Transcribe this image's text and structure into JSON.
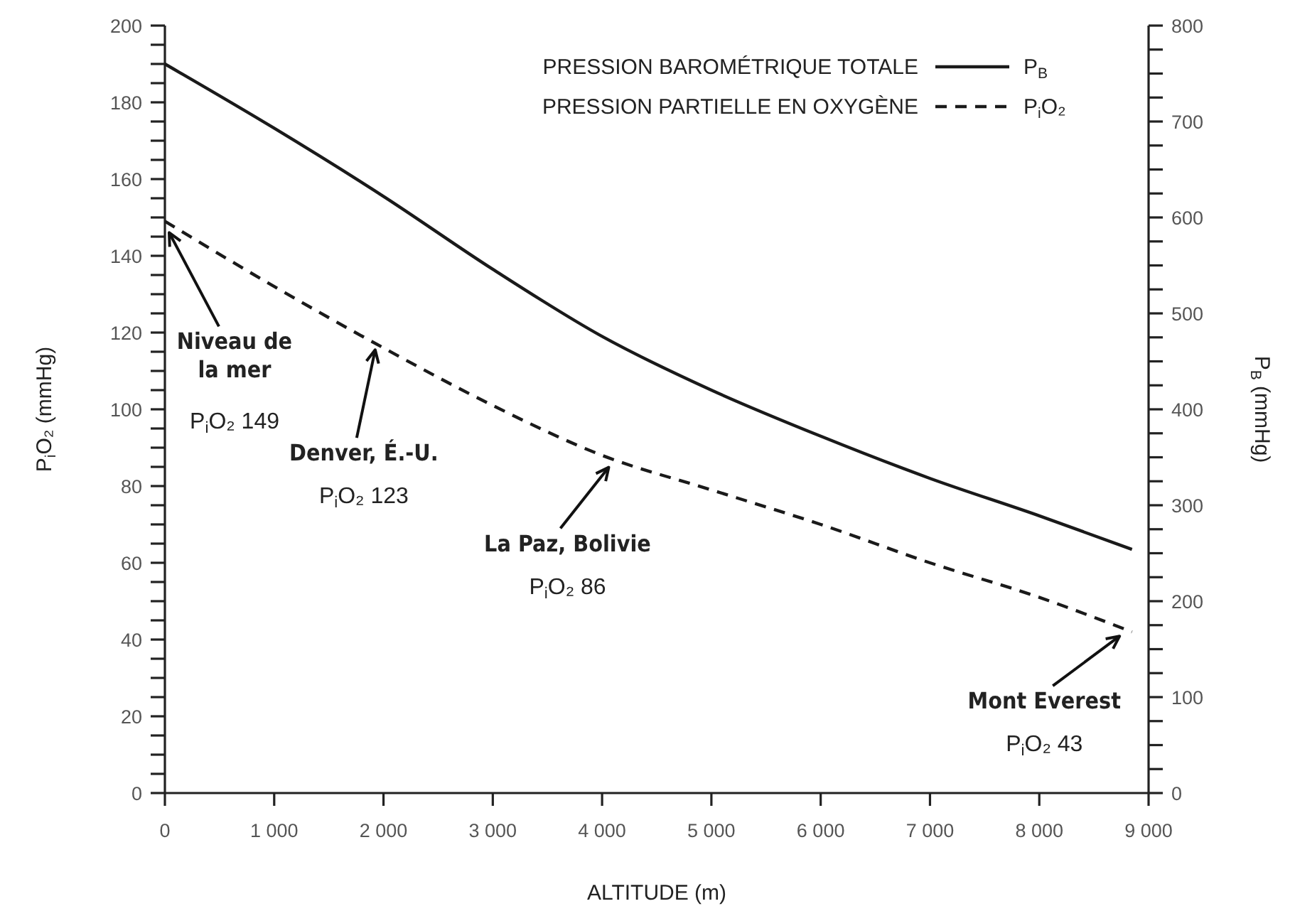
{
  "chart_data": {
    "type": "line",
    "xlabel": "ALTITUDE (m)",
    "ylabel": "P$_{i}$O₂ (mmHg)",
    "y2label": "P$_{B}$ (mmHg)",
    "x": [
      0,
      1000,
      2000,
      3000,
      4000,
      5000,
      6000,
      7000,
      8000,
      8848
    ],
    "series": [
      {
        "name": "PRESSION BAROMÉTRIQUE TOTALE",
        "color": "#1a1a1a",
        "axis": "y2",
        "line_style": "solid",
        "values": [
          760,
          693,
          622,
          546,
          476,
          420,
          372,
          328,
          289,
          254
        ]
      },
      {
        "name": "PRESSION PARTIELLE EN OXYGÈNE",
        "color": "#1a1a1a",
        "line_style": "dashed",
        "values": [
          149,
          132,
          116,
          101,
          88,
          79,
          70,
          60,
          51,
          42
        ]
      }
    ],
    "xlim": [
      0,
      9000
    ],
    "xticks": [
      0,
      {
        "value": 1000,
        "label": "1 000"
      },
      {
        "value": 2000,
        "label": "2 000"
      },
      {
        "value": 3000,
        "label": "3 000"
      },
      {
        "value": 4000,
        "label": "4 000"
      },
      {
        "value": 5000,
        "label": "5 000"
      },
      {
        "value": 6000,
        "label": "6 000"
      },
      {
        "value": 7000,
        "label": "7 000"
      },
      {
        "value": 8000,
        "label": "8 000"
      },
      {
        "value": 9000,
        "label": "9 000"
      }
    ],
    "ylim": [
      0,
      200
    ],
    "yticks": [
      0,
      {
        "value": 5,
        "label": null
      },
      {
        "value": 10,
        "label": null
      },
      {
        "value": 15,
        "label": null
      },
      20,
      {
        "value": 25,
        "label": null
      },
      {
        "value": 30,
        "label": null
      },
      {
        "value": 35,
        "label": null
      },
      40,
      {
        "value": 45,
        "label": null
      },
      {
        "value": 50,
        "label": null
      },
      {
        "value": 55,
        "label": null
      },
      60,
      {
        "value": 65,
        "label": null
      },
      {
        "value": 70,
        "label": null
      },
      {
        "value": 75,
        "label": null
      },
      80,
      {
        "value": 85,
        "label": null
      },
      {
        "value": 90,
        "label": null
      },
      {
        "value": 95,
        "label": null
      },
      100,
      {
        "value": 105,
        "label": null
      },
      {
        "value": 110,
        "label": null
      },
      {
        "value": 115,
        "label": null
      },
      120,
      {
        "value": 125,
        "label": null
      },
      {
        "value": 130,
        "label": null
      },
      {
        "value": 135,
        "label": null
      },
      140,
      {
        "value": 145,
        "label": null
      },
      {
        "value": 150,
        "label": null
      },
      {
        "value": 155,
        "label": null
      },
      160,
      {
        "value": 165,
        "label": null
      },
      {
        "value": 170,
        "label": null
      },
      {
        "value": 175,
        "label": null
      },
      180,
      {
        "value": 185,
        "label": null
      },
      {
        "value": 190,
        "label": null
      },
      {
        "value": 195,
        "label": null
      },
      200
    ],
    "y2lim": [
      0,
      800
    ],
    "y2ticks": [
      0,
      {
        "value": 25,
        "label": null
      },
      {
        "value": 50,
        "label": null
      },
      {
        "value": 75,
        "label": null
      },
      100,
      {
        "value": 125,
        "label": null
      },
      {
        "value": 150,
        "label": null
      },
      {
        "value": 175,
        "label": null
      },
      200,
      {
        "value": 225,
        "label": null
      },
      {
        "value": 250,
        "label": null
      },
      {
        "value": 275,
        "label": null
      },
      300,
      {
        "value": 325,
        "label": null
      },
      {
        "value": 350,
        "label": null
      },
      {
        "value": 375,
        "label": null
      },
      400,
      {
        "value": 425,
        "label": null
      },
      {
        "value": 450,
        "label": null
      },
      {
        "value": 475,
        "label": null
      },
      500,
      {
        "value": 525,
        "label": null
      },
      {
        "value": 550,
        "label": null
      },
      {
        "value": 575,
        "label": null
      },
      600,
      {
        "value": 625,
        "label": null
      },
      {
        "value": 650,
        "label": null
      },
      {
        "value": 675,
        "label": null
      },
      700,
      {
        "value": 725,
        "label": null
      },
      {
        "value": 750,
        "label": null
      },
      {
        "value": 775,
        "label": null
      },
      800
    ],
    "grid": false,
    "legend": "top right",
    "marker": "none",
    "annotations": [
      "P$_{B}$",
      "P$_{i}$O₂",
      {
        "text": "Niveau de\nla mer\nP$_{i}$O₂ 149",
        "x": 0,
        "y": 149
      },
      {
        "text": "Denver, É.-U.\nP$_{i}$O₂ 123",
        "x": 1950,
        "y": 117
      },
      {
        "text": "La Paz, Bolivie\nP$_{i}$O₂ 86",
        "x": 4100,
        "y": 86
      },
      {
        "text": "Mont Everest\nP$_{i}$O₂ 43",
        "x": 8800,
        "y": 42
      }
    ]
  }
}
